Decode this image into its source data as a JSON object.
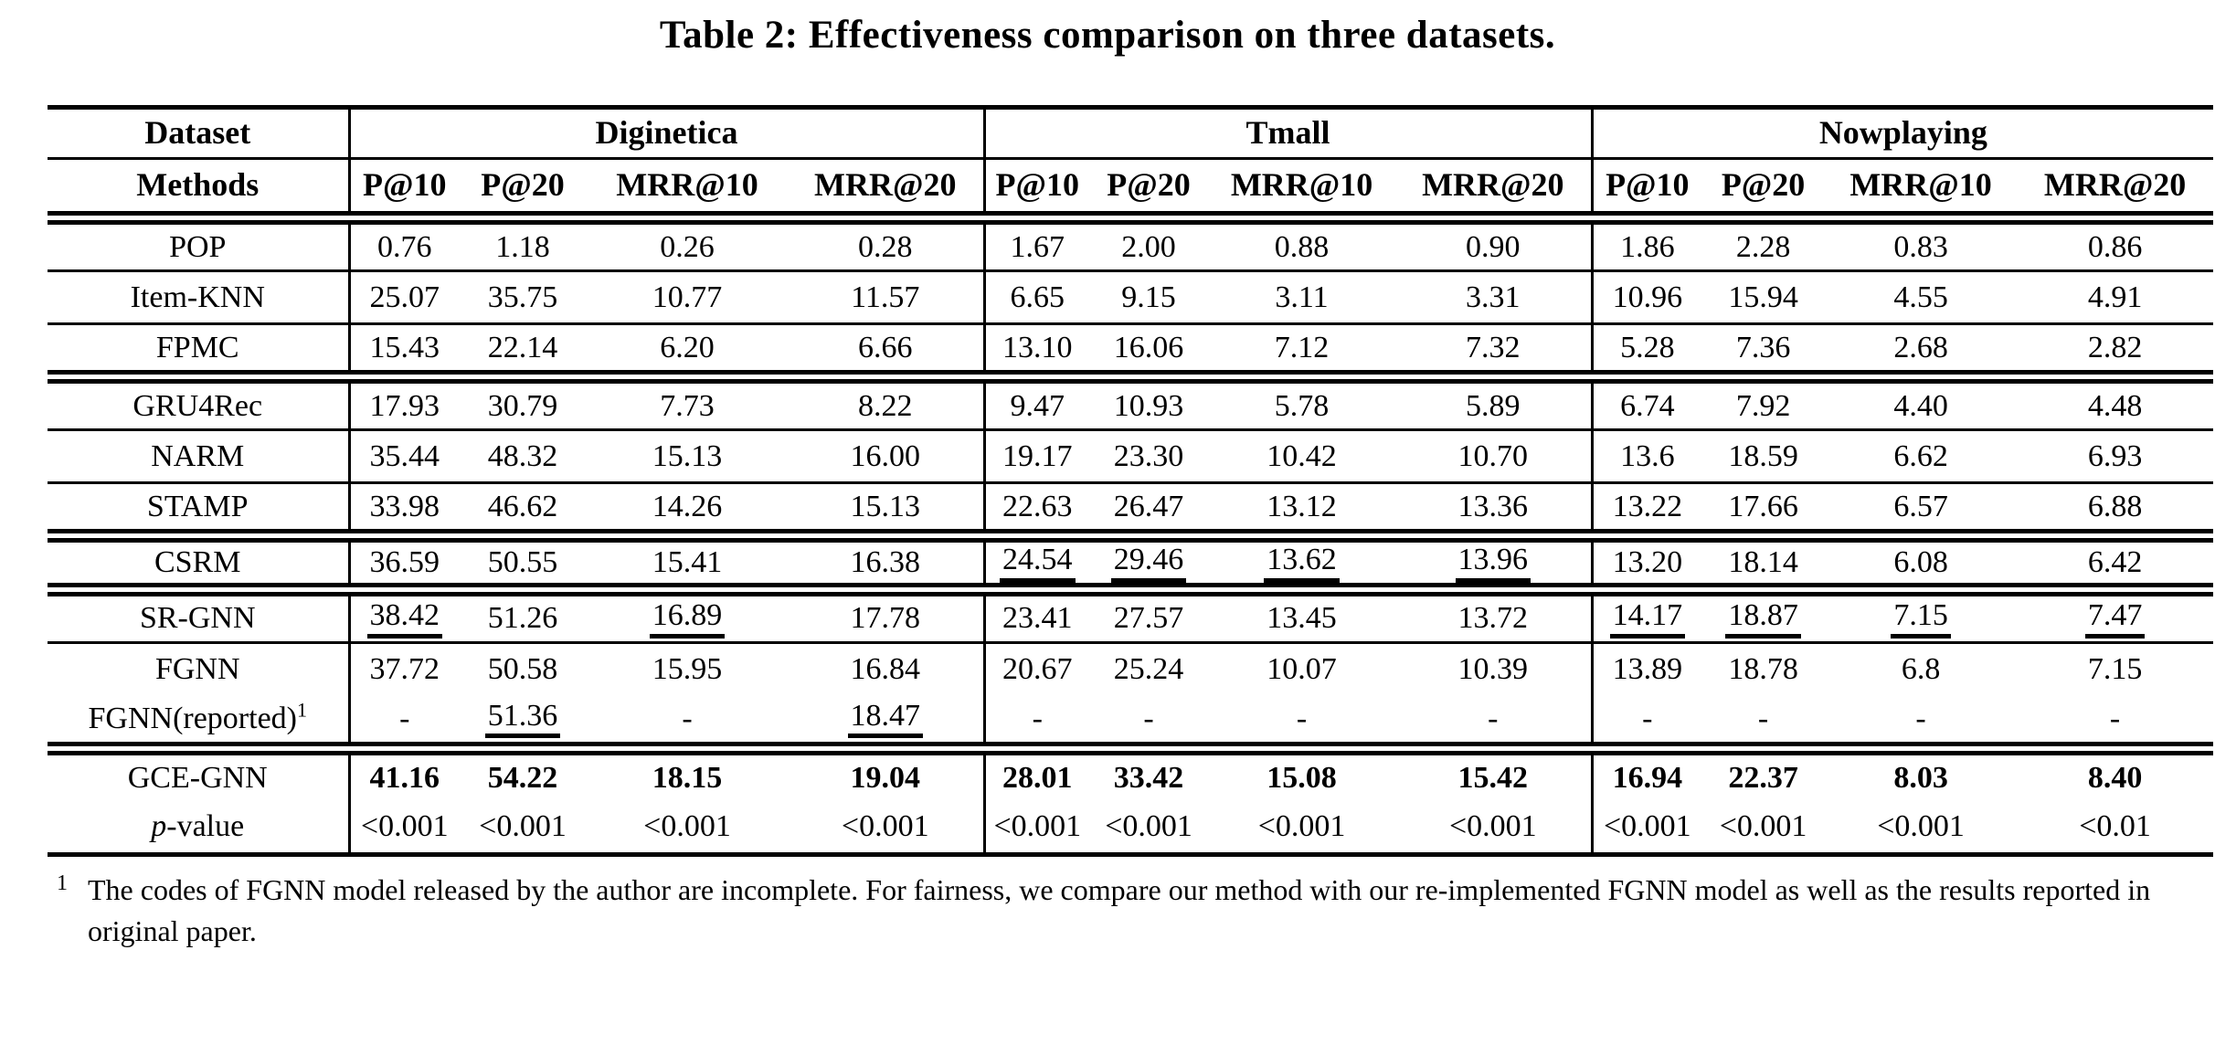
{
  "title": "Table 2: Effectiveness comparison on three datasets.",
  "table": {
    "corner": {
      "dataset": "Dataset",
      "methods": "Methods"
    },
    "datasets": [
      "Diginetica",
      "Tmall",
      "Nowplaying"
    ],
    "metrics": [
      "P@10",
      "P@20",
      "MRR@10",
      "MRR@20"
    ],
    "rows": [
      {
        "label": "POP",
        "rule": "single",
        "cells": [
          {
            "t": "0.76"
          },
          {
            "t": "1.18"
          },
          {
            "t": "0.26"
          },
          {
            "t": "0.28"
          },
          {
            "t": "1.67"
          },
          {
            "t": "2.00"
          },
          {
            "t": "0.88"
          },
          {
            "t": "0.90"
          },
          {
            "t": "1.86"
          },
          {
            "t": "2.28"
          },
          {
            "t": "0.83"
          },
          {
            "t": "0.86"
          }
        ]
      },
      {
        "label": "Item-KNN",
        "rule": "single",
        "cells": [
          {
            "t": "25.07"
          },
          {
            "t": "35.75"
          },
          {
            "t": "10.77"
          },
          {
            "t": "11.57"
          },
          {
            "t": "6.65"
          },
          {
            "t": "9.15"
          },
          {
            "t": "3.11"
          },
          {
            "t": "3.31"
          },
          {
            "t": "10.96"
          },
          {
            "t": "15.94"
          },
          {
            "t": "4.55"
          },
          {
            "t": "4.91"
          }
        ]
      },
      {
        "label": "FPMC",
        "rule": "double",
        "cells": [
          {
            "t": "15.43"
          },
          {
            "t": "22.14"
          },
          {
            "t": "6.20"
          },
          {
            "t": "6.66"
          },
          {
            "t": "13.10"
          },
          {
            "t": "16.06"
          },
          {
            "t": "7.12"
          },
          {
            "t": "7.32"
          },
          {
            "t": "5.28"
          },
          {
            "t": "7.36"
          },
          {
            "t": "2.68"
          },
          {
            "t": "2.82"
          }
        ]
      },
      {
        "label": "GRU4Rec",
        "rule": "single",
        "cells": [
          {
            "t": "17.93"
          },
          {
            "t": "30.79"
          },
          {
            "t": "7.73"
          },
          {
            "t": "8.22"
          },
          {
            "t": "9.47"
          },
          {
            "t": "10.93"
          },
          {
            "t": "5.78"
          },
          {
            "t": "5.89"
          },
          {
            "t": "6.74"
          },
          {
            "t": "7.92"
          },
          {
            "t": "4.40"
          },
          {
            "t": "4.48"
          }
        ]
      },
      {
        "label": "NARM",
        "rule": "single",
        "cells": [
          {
            "t": "35.44"
          },
          {
            "t": "48.32"
          },
          {
            "t": "15.13"
          },
          {
            "t": "16.00"
          },
          {
            "t": "19.17"
          },
          {
            "t": "23.30"
          },
          {
            "t": "10.42"
          },
          {
            "t": "10.70"
          },
          {
            "t": "13.6"
          },
          {
            "t": "18.59"
          },
          {
            "t": "6.62"
          },
          {
            "t": "6.93"
          }
        ]
      },
      {
        "label": "STAMP",
        "rule": "double",
        "cells": [
          {
            "t": "33.98"
          },
          {
            "t": "46.62"
          },
          {
            "t": "14.26"
          },
          {
            "t": "15.13"
          },
          {
            "t": "22.63"
          },
          {
            "t": "26.47"
          },
          {
            "t": "13.12"
          },
          {
            "t": "13.36"
          },
          {
            "t": "13.22"
          },
          {
            "t": "17.66"
          },
          {
            "t": "6.57"
          },
          {
            "t": "6.88"
          }
        ]
      },
      {
        "label": "CSRM",
        "rule": "double",
        "cells": [
          {
            "t": "36.59"
          },
          {
            "t": "50.55"
          },
          {
            "t": "15.41"
          },
          {
            "t": "16.38"
          },
          {
            "t": "24.54",
            "u": true
          },
          {
            "t": "29.46",
            "u": true
          },
          {
            "t": "13.62",
            "u": true
          },
          {
            "t": "13.96",
            "u": true
          },
          {
            "t": "13.20"
          },
          {
            "t": "18.14"
          },
          {
            "t": "6.08"
          },
          {
            "t": "6.42"
          }
        ]
      },
      {
        "label": "SR-GNN",
        "rule": "single",
        "cells": [
          {
            "t": "38.42",
            "u": true
          },
          {
            "t": "51.26"
          },
          {
            "t": "16.89",
            "u": true
          },
          {
            "t": "17.78"
          },
          {
            "t": "23.41"
          },
          {
            "t": "27.57"
          },
          {
            "t": "13.45"
          },
          {
            "t": "13.72"
          },
          {
            "t": "14.17",
            "u": true
          },
          {
            "t": "18.87",
            "u": true
          },
          {
            "t": "7.15",
            "u": true
          },
          {
            "t": "7.47",
            "u": true
          }
        ]
      },
      {
        "label": "FGNN",
        "rule": "none",
        "cells": [
          {
            "t": "37.72"
          },
          {
            "t": "50.58"
          },
          {
            "t": "15.95"
          },
          {
            "t": "16.84"
          },
          {
            "t": "20.67"
          },
          {
            "t": "25.24"
          },
          {
            "t": "10.07"
          },
          {
            "t": "10.39"
          },
          {
            "t": "13.89"
          },
          {
            "t": "18.78"
          },
          {
            "t": "6.8"
          },
          {
            "t": "7.15"
          }
        ]
      },
      {
        "label": "FGNN(reported)",
        "sup": "1",
        "rule": "double",
        "cells": [
          {
            "t": "-"
          },
          {
            "t": "51.36",
            "u": true
          },
          {
            "t": "-"
          },
          {
            "t": "18.47",
            "u": true
          },
          {
            "t": "-"
          },
          {
            "t": "-"
          },
          {
            "t": "-"
          },
          {
            "t": "-"
          },
          {
            "t": "-"
          },
          {
            "t": "-"
          },
          {
            "t": "-"
          },
          {
            "t": "-"
          }
        ]
      },
      {
        "label": "GCE-GNN",
        "rule": "none",
        "cells": [
          {
            "t": "41.16",
            "b": true
          },
          {
            "t": "54.22",
            "b": true
          },
          {
            "t": "18.15",
            "b": true
          },
          {
            "t": "19.04",
            "b": true
          },
          {
            "t": "28.01",
            "b": true
          },
          {
            "t": "33.42",
            "b": true
          },
          {
            "t": "15.08",
            "b": true
          },
          {
            "t": "15.42",
            "b": true
          },
          {
            "t": "16.94",
            "b": true
          },
          {
            "t": "22.37",
            "b": true
          },
          {
            "t": "8.03",
            "b": true
          },
          {
            "t": "8.40",
            "b": true
          }
        ]
      },
      {
        "label": "-value",
        "label_italic": "p",
        "rule": "bottom",
        "cells": [
          {
            "t": "<0.001"
          },
          {
            "t": "<0.001"
          },
          {
            "t": "<0.001"
          },
          {
            "t": "<0.001"
          },
          {
            "t": "<0.001"
          },
          {
            "t": "<0.001"
          },
          {
            "t": "<0.001"
          },
          {
            "t": "<0.001"
          },
          {
            "t": "<0.001"
          },
          {
            "t": "<0.001"
          },
          {
            "t": "<0.001"
          },
          {
            "t": "<0.01"
          }
        ]
      }
    ]
  },
  "footnote": {
    "marker": "1",
    "text": "The codes of FGNN model released by the author are incomplete. For fairness, we compare our method with our re-implemented FGNN model as well as the results reported in original paper."
  }
}
